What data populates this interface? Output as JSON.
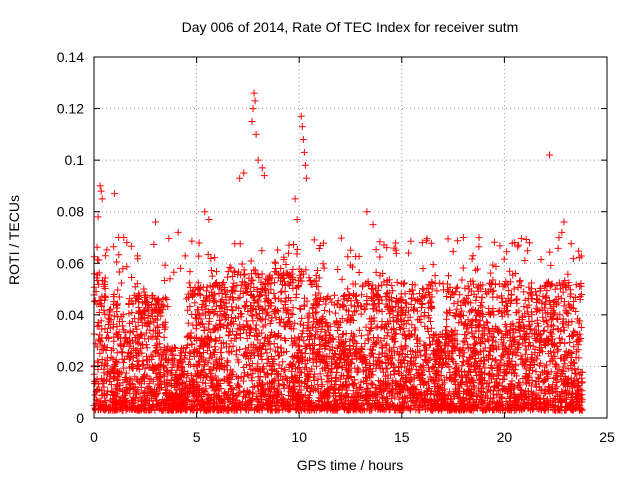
{
  "chart_data": {
    "type": "scatter",
    "title": "Day 006 of 2014, Rate Of TEC Index for receiver sutm",
    "xlabel": "GPS time / hours",
    "ylabel": "ROTI / TECUs",
    "xlim": [
      0,
      25
    ],
    "ylim": [
      0,
      0.14
    ],
    "grid": true,
    "marker": "plus",
    "color": "#ff0000",
    "x_ticks": [
      0,
      5,
      10,
      15,
      20,
      25
    ],
    "x_tick_labels": [
      "0",
      "5",
      "10",
      "15",
      "20",
      "25"
    ],
    "y_ticks": [
      0,
      0.02,
      0.04,
      0.06,
      0.08,
      0.1,
      0.12,
      0.14
    ],
    "y_tick_labels": [
      "0",
      "0.02",
      "0.04",
      "0.06",
      "0.08",
      "0.1",
      "0.12",
      "0.14"
    ],
    "x_range_of_data": [
      0,
      23.8
    ],
    "typical_range": [
      0.002,
      0.045
    ],
    "series": [
      {
        "name": "ROTI",
        "notable_points": [
          {
            "x": 0.3,
            "y": 0.09
          },
          {
            "x": 0.35,
            "y": 0.088
          },
          {
            "x": 0.4,
            "y": 0.085
          },
          {
            "x": 1.0,
            "y": 0.087
          },
          {
            "x": 0.2,
            "y": 0.078
          },
          {
            "x": 1.2,
            "y": 0.07
          },
          {
            "x": 1.6,
            "y": 0.068
          },
          {
            "x": 3.0,
            "y": 0.076
          },
          {
            "x": 4.1,
            "y": 0.072
          },
          {
            "x": 5.4,
            "y": 0.08
          },
          {
            "x": 5.6,
            "y": 0.077
          },
          {
            "x": 7.1,
            "y": 0.093
          },
          {
            "x": 7.3,
            "y": 0.095
          },
          {
            "x": 7.7,
            "y": 0.115
          },
          {
            "x": 7.75,
            "y": 0.12
          },
          {
            "x": 7.8,
            "y": 0.126
          },
          {
            "x": 7.85,
            "y": 0.123
          },
          {
            "x": 7.9,
            "y": 0.11
          },
          {
            "x": 8.0,
            "y": 0.1
          },
          {
            "x": 8.2,
            "y": 0.097
          },
          {
            "x": 8.3,
            "y": 0.094
          },
          {
            "x": 10.1,
            "y": 0.117
          },
          {
            "x": 10.15,
            "y": 0.113
          },
          {
            "x": 10.2,
            "y": 0.108
          },
          {
            "x": 10.25,
            "y": 0.103
          },
          {
            "x": 10.3,
            "y": 0.098
          },
          {
            "x": 10.35,
            "y": 0.093
          },
          {
            "x": 9.8,
            "y": 0.085
          },
          {
            "x": 9.9,
            "y": 0.077
          },
          {
            "x": 13.3,
            "y": 0.08
          },
          {
            "x": 13.6,
            "y": 0.075
          },
          {
            "x": 22.2,
            "y": 0.102
          },
          {
            "x": 22.9,
            "y": 0.076
          },
          {
            "x": 22.8,
            "y": 0.072
          },
          {
            "x": 20.5,
            "y": 0.068
          },
          {
            "x": 18.0,
            "y": 0.07
          },
          {
            "x": 16.0,
            "y": 0.068
          }
        ]
      }
    ]
  }
}
